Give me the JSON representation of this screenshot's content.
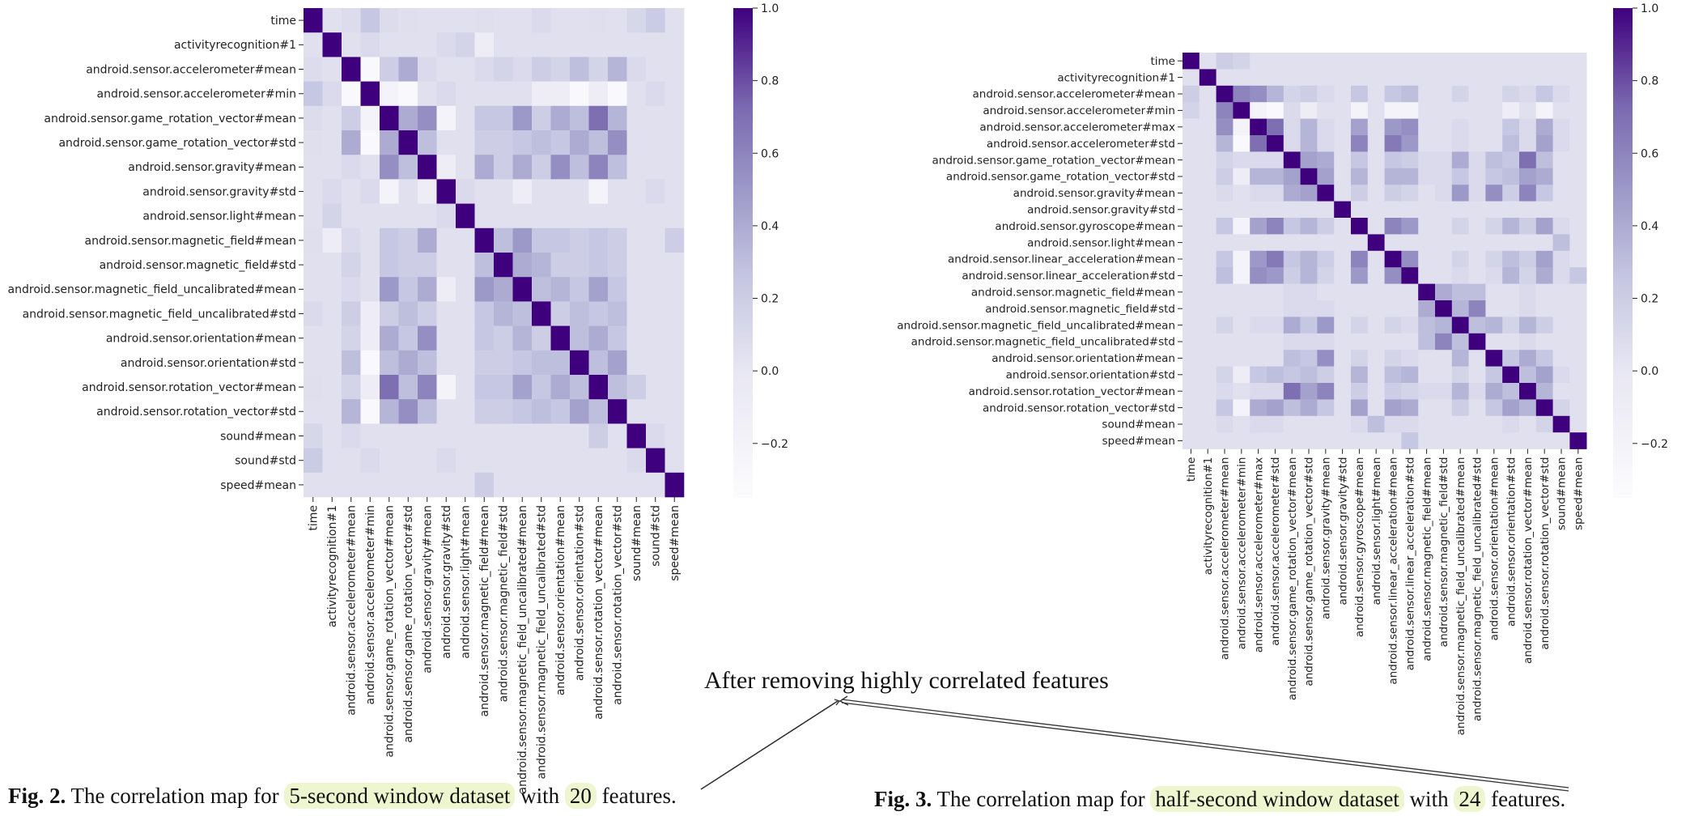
{
  "annotation": "After removing highly correlated features",
  "captions": [
    {
      "fig": "Fig. 2.",
      "pre": "The correlation map for",
      "hl1": "5-second window dataset",
      "mid": "with",
      "hl2": "20",
      "post": "features."
    },
    {
      "fig": "Fig. 3.",
      "pre": "The correlation map for",
      "hl1": "half-second window dataset",
      "mid": "with",
      "hl2": "24",
      "post": "features."
    }
  ],
  "chart_data": [
    {
      "type": "heatmap",
      "title": "",
      "colormap": "Purples",
      "colorbar_ticks": [
        "1.0",
        "0.8",
        "0.6",
        "0.4",
        "0.2",
        "0.0",
        "−0.2"
      ],
      "colorbar_range": [
        -0.35,
        1.0
      ],
      "labels": [
        "time",
        "activityrecognition#1",
        "android.sensor.accelerometer#mean",
        "android.sensor.accelerometer#min",
        "android.sensor.game_rotation_vector#mean",
        "android.sensor.game_rotation_vector#std",
        "android.sensor.gravity#mean",
        "android.sensor.gravity#std",
        "android.sensor.light#mean",
        "android.sensor.magnetic_field#mean",
        "android.sensor.magnetic_field#std",
        "android.sensor.magnetic_field_uncalibrated#mean",
        "android.sensor.magnetic_field_uncalibrated#std",
        "android.sensor.orientation#mean",
        "android.sensor.orientation#std",
        "android.sensor.rotation_vector#mean",
        "android.sensor.rotation_vector#std",
        "sound#mean",
        "sound#std",
        "speed#mean"
      ],
      "values": [
        [
          1.0,
          0.05,
          0.08,
          0.25,
          0.08,
          0.06,
          0.05,
          0.05,
          0.05,
          0.06,
          0.05,
          0.05,
          0.1,
          0.05,
          0.05,
          0.06,
          0.05,
          0.12,
          0.22,
          0.05
        ],
        [
          0.05,
          1.0,
          0.05,
          0.1,
          0.05,
          0.05,
          0.05,
          0.1,
          0.15,
          -0.1,
          0.05,
          0.05,
          0.05,
          0.05,
          0.05,
          0.05,
          0.05,
          0.05,
          0.05,
          0.05
        ],
        [
          0.08,
          0.05,
          1.0,
          -0.3,
          0.2,
          0.4,
          0.1,
          0.05,
          0.05,
          0.1,
          0.15,
          0.1,
          0.2,
          0.15,
          0.3,
          0.15,
          0.35,
          0.1,
          0.05,
          0.05
        ],
        [
          0.25,
          0.1,
          -0.3,
          1.0,
          -0.2,
          -0.3,
          0.05,
          0.1,
          0.05,
          0.05,
          0.05,
          0.05,
          -0.1,
          -0.1,
          -0.3,
          -0.1,
          -0.3,
          0.05,
          0.1,
          0.05
        ],
        [
          0.08,
          0.05,
          0.2,
          -0.2,
          1.0,
          0.4,
          0.55,
          -0.2,
          0.05,
          0.25,
          0.25,
          0.5,
          0.2,
          0.4,
          0.3,
          0.7,
          0.35,
          0.05,
          0.05,
          0.05
        ],
        [
          0.06,
          0.05,
          0.4,
          -0.3,
          0.4,
          1.0,
          0.3,
          0.05,
          0.05,
          0.2,
          0.2,
          0.25,
          0.3,
          0.25,
          0.4,
          0.3,
          0.55,
          0.05,
          0.05,
          0.05
        ],
        [
          0.05,
          0.05,
          0.1,
          0.05,
          0.55,
          0.3,
          1.0,
          -0.1,
          0.05,
          0.4,
          0.2,
          0.4,
          0.2,
          0.55,
          0.3,
          0.6,
          0.3,
          0.05,
          0.05,
          0.05
        ],
        [
          0.05,
          0.1,
          0.05,
          0.1,
          -0.2,
          0.05,
          -0.1,
          1.0,
          0.1,
          0.05,
          0.05,
          -0.1,
          0.05,
          0.05,
          0.05,
          -0.2,
          0.05,
          0.05,
          0.1,
          0.05
        ],
        [
          0.05,
          0.15,
          0.05,
          0.05,
          0.05,
          0.05,
          0.05,
          0.1,
          1.0,
          0.05,
          0.05,
          0.05,
          0.05,
          0.05,
          0.05,
          0.05,
          0.05,
          0.05,
          0.05,
          0.05
        ],
        [
          0.06,
          -0.1,
          0.1,
          0.05,
          0.25,
          0.2,
          0.4,
          0.05,
          0.05,
          1.0,
          0.3,
          0.5,
          0.25,
          0.25,
          0.2,
          0.25,
          0.2,
          0.05,
          0.05,
          0.2
        ],
        [
          0.05,
          0.05,
          0.15,
          0.05,
          0.25,
          0.2,
          0.2,
          0.05,
          0.05,
          0.3,
          1.0,
          0.4,
          0.35,
          0.2,
          0.2,
          0.25,
          0.2,
          0.05,
          0.05,
          0.05
        ],
        [
          0.05,
          0.05,
          0.1,
          0.05,
          0.5,
          0.25,
          0.4,
          -0.1,
          0.05,
          0.5,
          0.4,
          1.0,
          0.3,
          0.35,
          0.25,
          0.45,
          0.25,
          0.05,
          0.05,
          0.05
        ],
        [
          0.1,
          0.05,
          0.2,
          -0.1,
          0.2,
          0.3,
          0.2,
          0.05,
          0.05,
          0.25,
          0.35,
          0.3,
          1.0,
          0.2,
          0.3,
          0.25,
          0.3,
          0.05,
          0.05,
          0.05
        ],
        [
          0.05,
          0.05,
          0.15,
          -0.1,
          0.4,
          0.25,
          0.55,
          0.05,
          0.05,
          0.25,
          0.2,
          0.35,
          0.2,
          1.0,
          0.3,
          0.4,
          0.25,
          0.05,
          0.05,
          0.05
        ],
        [
          0.05,
          0.05,
          0.3,
          -0.3,
          0.3,
          0.4,
          0.3,
          0.05,
          0.05,
          0.2,
          0.2,
          0.25,
          0.3,
          0.3,
          1.0,
          0.3,
          0.45,
          0.05,
          0.05,
          0.05
        ],
        [
          0.06,
          0.05,
          0.15,
          -0.1,
          0.7,
          0.3,
          0.6,
          -0.2,
          0.05,
          0.25,
          0.25,
          0.45,
          0.25,
          0.4,
          0.3,
          1.0,
          0.3,
          0.2,
          0.05,
          0.05
        ],
        [
          0.05,
          0.05,
          0.35,
          -0.3,
          0.35,
          0.55,
          0.3,
          0.05,
          0.05,
          0.2,
          0.2,
          0.25,
          0.3,
          0.25,
          0.45,
          0.3,
          1.0,
          0.05,
          0.05,
          0.05
        ],
        [
          0.12,
          0.05,
          0.1,
          0.05,
          0.05,
          0.05,
          0.05,
          0.05,
          0.05,
          0.05,
          0.05,
          0.05,
          0.05,
          0.05,
          0.05,
          0.2,
          0.05,
          1.0,
          0.1,
          0.05
        ],
        [
          0.22,
          0.05,
          0.05,
          0.1,
          0.05,
          0.05,
          0.05,
          0.1,
          0.05,
          0.05,
          0.05,
          0.05,
          0.05,
          0.05,
          0.05,
          0.05,
          0.05,
          0.1,
          1.0,
          0.05
        ],
        [
          0.05,
          0.05,
          0.05,
          0.05,
          0.05,
          0.05,
          0.05,
          0.05,
          0.05,
          0.2,
          0.05,
          0.05,
          0.05,
          0.05,
          0.05,
          0.05,
          0.05,
          0.05,
          0.05,
          1.0
        ]
      ]
    },
    {
      "type": "heatmap",
      "title": "",
      "colormap": "Purples",
      "colorbar_ticks": [
        "1.0",
        "0.8",
        "0.6",
        "0.4",
        "0.2",
        "0.0",
        "−0.2"
      ],
      "colorbar_range": [
        -0.35,
        1.0
      ],
      "labels": [
        "time",
        "activityrecognition#1",
        "android.sensor.accelerometer#mean",
        "android.sensor.accelerometer#min",
        "android.sensor.accelerometer#max",
        "android.sensor.accelerometer#std",
        "android.sensor.game_rotation_vector#mean",
        "android.sensor.game_rotation_vector#std",
        "android.sensor.gravity#mean",
        "android.sensor.gravity#std",
        "android.sensor.gyroscope#mean",
        "android.sensor.light#mean",
        "android.sensor.linear_acceleration#mean",
        "android.sensor.linear_acceleration#std",
        "android.sensor.magnetic_field#mean",
        "android.sensor.magnetic_field#std",
        "android.sensor.magnetic_field_uncalibrated#mean",
        "android.sensor.magnetic_field_uncalibrated#std",
        "android.sensor.orientation#mean",
        "android.sensor.orientation#std",
        "android.sensor.rotation_vector#mean",
        "android.sensor.rotation_vector#std",
        "sound#mean",
        "speed#mean"
      ],
      "values": [
        [
          1.0,
          0.05,
          0.2,
          0.15,
          0.05,
          0.05,
          0.05,
          0.05,
          0.05,
          0.05,
          0.05,
          0.05,
          0.05,
          0.05,
          0.05,
          0.05,
          0.05,
          0.05,
          0.05,
          0.05,
          0.05,
          0.05,
          0.05,
          0.05
        ],
        [
          0.05,
          1.0,
          0.05,
          0.05,
          0.05,
          0.05,
          0.05,
          0.05,
          0.05,
          0.05,
          0.05,
          0.05,
          0.05,
          0.05,
          0.05,
          0.05,
          0.05,
          0.05,
          0.05,
          0.05,
          0.05,
          0.05,
          0.05,
          0.05
        ],
        [
          0.2,
          0.05,
          1.0,
          0.6,
          0.55,
          0.35,
          0.15,
          0.2,
          0.1,
          0.05,
          0.25,
          0.05,
          0.25,
          0.3,
          0.05,
          0.05,
          0.15,
          0.05,
          0.05,
          0.15,
          0.1,
          0.25,
          0.1,
          0.05
        ],
        [
          0.15,
          0.05,
          0.6,
          1.0,
          -0.2,
          -0.3,
          0.1,
          -0.1,
          0.05,
          0.05,
          -0.2,
          0.05,
          -0.2,
          -0.2,
          0.05,
          0.05,
          0.05,
          0.05,
          0.05,
          -0.1,
          0.05,
          -0.2,
          0.05,
          0.05
        ],
        [
          0.05,
          0.05,
          0.55,
          -0.2,
          1.0,
          0.7,
          0.1,
          0.35,
          0.1,
          0.05,
          0.45,
          0.05,
          0.5,
          0.55,
          0.05,
          0.05,
          0.1,
          0.05,
          0.05,
          0.25,
          0.1,
          0.4,
          0.1,
          0.05
        ],
        [
          0.05,
          0.05,
          0.35,
          -0.3,
          0.7,
          1.0,
          0.1,
          0.35,
          0.1,
          0.05,
          0.6,
          0.05,
          0.65,
          0.5,
          0.05,
          0.05,
          0.1,
          0.05,
          0.05,
          0.3,
          0.1,
          0.45,
          0.1,
          0.05
        ],
        [
          0.05,
          0.05,
          0.15,
          0.1,
          0.1,
          0.1,
          1.0,
          0.45,
          0.4,
          0.05,
          0.25,
          0.05,
          0.25,
          0.2,
          0.1,
          0.1,
          0.4,
          0.1,
          0.3,
          0.25,
          0.7,
          0.3,
          0.05,
          0.05
        ],
        [
          0.05,
          0.05,
          0.2,
          -0.1,
          0.35,
          0.35,
          0.45,
          1.0,
          0.45,
          0.05,
          0.35,
          0.05,
          0.35,
          0.35,
          0.1,
          0.1,
          0.25,
          0.1,
          0.25,
          0.3,
          0.45,
          0.4,
          0.05,
          0.05
        ],
        [
          0.05,
          0.05,
          0.1,
          0.05,
          0.1,
          0.1,
          0.4,
          0.45,
          1.0,
          0.05,
          0.2,
          0.05,
          0.2,
          0.15,
          0.05,
          0.1,
          0.5,
          0.1,
          0.55,
          0.2,
          0.6,
          0.25,
          0.05,
          0.05
        ],
        [
          0.05,
          0.05,
          0.05,
          0.05,
          0.05,
          0.05,
          0.05,
          0.05,
          0.05,
          1.0,
          0.05,
          0.05,
          0.05,
          0.05,
          0.05,
          0.05,
          0.05,
          0.05,
          0.05,
          0.05,
          0.05,
          0.05,
          0.05,
          0.05
        ],
        [
          0.05,
          0.05,
          0.25,
          -0.2,
          0.45,
          0.6,
          0.25,
          0.35,
          0.2,
          0.05,
          1.0,
          0.05,
          0.6,
          0.5,
          0.05,
          0.05,
          0.15,
          0.05,
          0.15,
          0.35,
          0.2,
          0.45,
          0.1,
          0.05
        ],
        [
          0.05,
          0.05,
          0.05,
          0.05,
          0.05,
          0.05,
          0.05,
          0.05,
          0.05,
          0.05,
          0.05,
          1.0,
          0.05,
          0.05,
          0.05,
          0.05,
          0.05,
          0.05,
          0.05,
          0.05,
          0.05,
          0.05,
          0.3,
          0.05
        ],
        [
          0.05,
          0.05,
          0.25,
          -0.2,
          0.5,
          0.65,
          0.25,
          0.35,
          0.2,
          0.05,
          0.6,
          0.05,
          1.0,
          0.55,
          0.05,
          0.05,
          0.15,
          0.05,
          0.15,
          0.3,
          0.2,
          0.45,
          0.1,
          0.05
        ],
        [
          0.05,
          0.05,
          0.3,
          -0.2,
          0.55,
          0.5,
          0.2,
          0.35,
          0.15,
          0.05,
          0.5,
          0.05,
          0.55,
          1.0,
          0.05,
          0.05,
          0.1,
          0.05,
          0.1,
          0.35,
          0.15,
          0.4,
          0.1,
          0.25
        ],
        [
          0.05,
          0.05,
          0.05,
          0.05,
          0.05,
          0.05,
          0.1,
          0.1,
          0.05,
          0.05,
          0.05,
          0.05,
          0.05,
          0.05,
          1.0,
          0.4,
          0.3,
          0.3,
          0.05,
          0.05,
          0.1,
          0.05,
          0.05,
          0.05
        ],
        [
          0.05,
          0.05,
          0.05,
          0.05,
          0.05,
          0.05,
          0.1,
          0.1,
          0.1,
          0.05,
          0.05,
          0.05,
          0.05,
          0.05,
          0.4,
          1.0,
          0.35,
          0.6,
          0.05,
          0.05,
          0.1,
          0.05,
          0.05,
          0.05
        ],
        [
          0.05,
          0.05,
          0.15,
          0.05,
          0.1,
          0.1,
          0.4,
          0.25,
          0.5,
          0.05,
          0.15,
          0.05,
          0.15,
          0.1,
          0.3,
          0.35,
          1.0,
          0.3,
          0.35,
          0.15,
          0.35,
          0.2,
          0.05,
          0.05
        ],
        [
          0.05,
          0.05,
          0.05,
          0.05,
          0.05,
          0.05,
          0.1,
          0.1,
          0.1,
          0.05,
          0.05,
          0.05,
          0.05,
          0.05,
          0.3,
          0.6,
          0.3,
          1.0,
          0.05,
          0.05,
          0.1,
          0.05,
          0.05,
          0.05
        ],
        [
          0.05,
          0.05,
          0.05,
          0.05,
          0.05,
          0.05,
          0.3,
          0.25,
          0.55,
          0.05,
          0.15,
          0.05,
          0.15,
          0.1,
          0.05,
          0.05,
          0.35,
          0.05,
          1.0,
          0.25,
          0.4,
          0.25,
          0.05,
          0.05
        ],
        [
          0.05,
          0.05,
          0.15,
          -0.1,
          0.25,
          0.3,
          0.25,
          0.3,
          0.2,
          0.05,
          0.35,
          0.05,
          0.3,
          0.35,
          0.05,
          0.05,
          0.15,
          0.05,
          0.25,
          1.0,
          0.3,
          0.45,
          0.1,
          0.05
        ],
        [
          0.05,
          0.05,
          0.1,
          0.05,
          0.1,
          0.1,
          0.7,
          0.45,
          0.6,
          0.05,
          0.2,
          0.05,
          0.2,
          0.15,
          0.1,
          0.1,
          0.35,
          0.1,
          0.4,
          0.3,
          1.0,
          0.35,
          0.05,
          0.05
        ],
        [
          0.05,
          0.05,
          0.25,
          -0.2,
          0.4,
          0.45,
          0.3,
          0.4,
          0.25,
          0.05,
          0.45,
          0.05,
          0.45,
          0.4,
          0.05,
          0.05,
          0.2,
          0.05,
          0.25,
          0.45,
          0.35,
          1.0,
          0.15,
          0.05
        ],
        [
          0.05,
          0.05,
          0.1,
          0.05,
          0.1,
          0.1,
          0.05,
          0.05,
          0.05,
          0.05,
          0.1,
          0.3,
          0.1,
          0.1,
          0.05,
          0.05,
          0.05,
          0.05,
          0.05,
          0.1,
          0.05,
          0.15,
          1.0,
          0.05
        ],
        [
          0.05,
          0.05,
          0.05,
          0.05,
          0.05,
          0.05,
          0.05,
          0.05,
          0.05,
          0.05,
          0.05,
          0.05,
          0.05,
          0.25,
          0.05,
          0.05,
          0.05,
          0.05,
          0.05,
          0.05,
          0.05,
          0.05,
          0.05,
          1.0
        ]
      ]
    }
  ]
}
